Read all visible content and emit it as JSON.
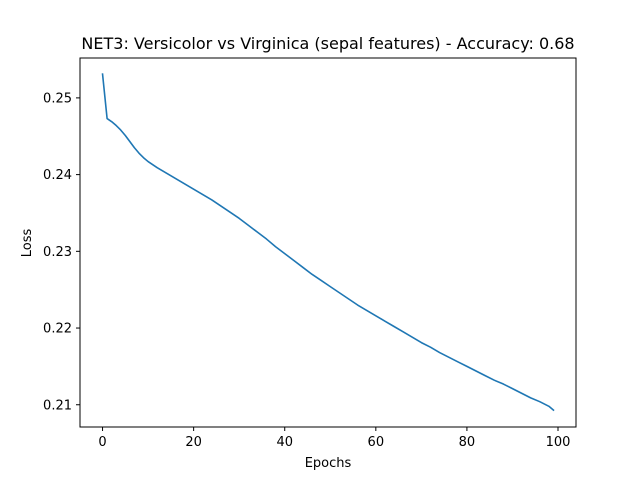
{
  "chart_data": {
    "type": "line",
    "title": "NET3: Versicolor vs Virginica (sepal features) - Accuracy: 0.68",
    "xlabel": "Epochs",
    "ylabel": "Loss",
    "xlim": [
      -4.95,
      103.95
    ],
    "ylim": [
      0.2071,
      0.2552
    ],
    "xticks": [
      0,
      20,
      40,
      60,
      80,
      100
    ],
    "yticks": [
      0.21,
      0.22,
      0.23,
      0.24,
      0.25
    ],
    "xtick_labels": [
      "0",
      "20",
      "40",
      "60",
      "80",
      "100"
    ],
    "ytick_labels": [
      "0.21",
      "0.22",
      "0.23",
      "0.24",
      "0.25"
    ],
    "grid": false,
    "series": [
      {
        "color": "#1f77b4",
        "x": [
          0,
          1,
          2,
          3,
          4,
          5,
          6,
          7,
          8,
          9,
          10,
          12,
          14,
          16,
          18,
          20,
          22,
          24,
          26,
          28,
          30,
          32,
          34,
          36,
          38,
          40,
          42,
          44,
          46,
          48,
          50,
          52,
          54,
          56,
          58,
          60,
          62,
          64,
          66,
          68,
          70,
          72,
          74,
          76,
          78,
          80,
          82,
          84,
          86,
          88,
          90,
          92,
          94,
          96,
          98,
          99
        ],
        "y": [
          0.2531,
          0.2473,
          0.2469,
          0.2464,
          0.2458,
          0.2451,
          0.2443,
          0.2435,
          0.2428,
          0.2422,
          0.2417,
          0.2409,
          0.2402,
          0.2395,
          0.2388,
          0.2381,
          0.2374,
          0.2367,
          0.2359,
          0.2351,
          0.2343,
          0.2334,
          0.2325,
          0.2316,
          0.2306,
          0.2297,
          0.2288,
          0.2279,
          0.227,
          0.2262,
          0.2254,
          0.2246,
          0.2238,
          0.223,
          0.2223,
          0.2216,
          0.2209,
          0.2202,
          0.2195,
          0.2188,
          0.2181,
          0.2175,
          0.2168,
          0.2162,
          0.2156,
          0.215,
          0.2144,
          0.2138,
          0.2132,
          0.2127,
          0.2121,
          0.2115,
          0.2109,
          0.2104,
          0.2098,
          0.2093
        ]
      }
    ]
  }
}
